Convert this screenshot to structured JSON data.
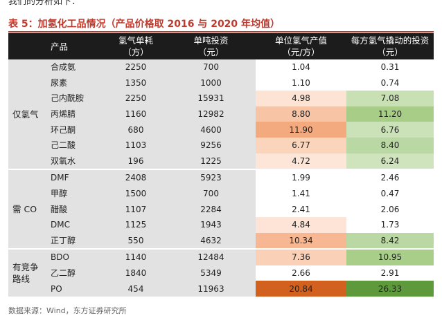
{
  "top_fragment": "我们的分析如下：",
  "title": "表 5：加氢化工品情况（产品价格取 2016 与 2020 年均值）",
  "headers": {
    "product": "产品",
    "h2_consumption": "氢气单耗\n（方）",
    "investment": "单吨投资\n（元）",
    "output_value": "单位氢气产值\n（元/方）",
    "driven_investment": "每方氢气撬动的投资\n（元）"
  },
  "groups": [
    {
      "label": "仅氢气",
      "rows": [
        {
          "product": "合成氨",
          "h2": "2250",
          "investment": "700",
          "value": "1.04",
          "drive": "0.31",
          "value_color": "#ffffff",
          "drive_color": "#ffffff"
        },
        {
          "product": "尿素",
          "h2": "1350",
          "investment": "1000",
          "value": "1.10",
          "drive": "0.74",
          "value_color": "#ffffff",
          "drive_color": "#ffffff"
        },
        {
          "product": "己内酰胺",
          "h2": "2250",
          "investment": "15931",
          "value": "4.98",
          "drive": "7.08",
          "value_color": "#fde3d4",
          "drive_color": "#c9dfb4"
        },
        {
          "product": "丙烯腈",
          "h2": "1160",
          "investment": "12982",
          "value": "8.80",
          "drive": "11.20",
          "value_color": "#f8c4a6",
          "drive_color": "#a7cd87"
        },
        {
          "product": "环己酮",
          "h2": "680",
          "investment": "4600",
          "value": "11.90",
          "drive": "6.76",
          "value_color": "#f4aa7f",
          "drive_color": "#cbe1b8"
        },
        {
          "product": "己二酸",
          "h2": "1103",
          "investment": "9256",
          "value": "6.77",
          "drive": "8.40",
          "value_color": "#fbd4bc",
          "drive_color": "#bad8a3"
        },
        {
          "product": "双氧水",
          "h2": "196",
          "investment": "1225",
          "value": "4.72",
          "drive": "6.24",
          "value_color": "#fde5d7",
          "drive_color": "#cfe4bd"
        }
      ]
    },
    {
      "label": "需 CO",
      "rows": [
        {
          "product": "DMF",
          "h2": "2408",
          "investment": "5923",
          "value": "1.99",
          "drive": "2.46",
          "value_color": "#ffffff",
          "drive_color": "#ffffff"
        },
        {
          "product": "甲醇",
          "h2": "1500",
          "investment": "700",
          "value": "1.41",
          "drive": "0.47",
          "value_color": "#ffffff",
          "drive_color": "#ffffff"
        },
        {
          "product": "醋酸",
          "h2": "1107",
          "investment": "2284",
          "value": "2.41",
          "drive": "2.06",
          "value_color": "#ffffff",
          "drive_color": "#ffffff"
        },
        {
          "product": "DMC",
          "h2": "1125",
          "investment": "1943",
          "value": "4.84",
          "drive": "1.73",
          "value_color": "#fde4d6",
          "drive_color": "#ffffff"
        },
        {
          "product": "正丁醇",
          "h2": "550",
          "investment": "4632",
          "value": "10.34",
          "drive": "8.42",
          "value_color": "#f6b792",
          "drive_color": "#bad8a3"
        }
      ]
    },
    {
      "label": "有竞争\n路线",
      "rows": [
        {
          "product": "BDO",
          "h2": "1140",
          "investment": "12484",
          "value": "7.36",
          "drive": "10.95",
          "value_color": "#fad0b6",
          "drive_color": "#a9ce8a"
        },
        {
          "product": "乙二醇",
          "h2": "1840",
          "investment": "5349",
          "value": "2.66",
          "drive": "2.91",
          "value_color": "#ffffff",
          "drive_color": "#ffffff"
        },
        {
          "product": "PO",
          "h2": "454",
          "investment": "11963",
          "value": "20.84",
          "drive": "26.33",
          "value_color": "#d2601e",
          "drive_color": "#5e9a3c"
        }
      ]
    }
  ],
  "footer": "数据来源：Wind，东方证券研究所"
}
